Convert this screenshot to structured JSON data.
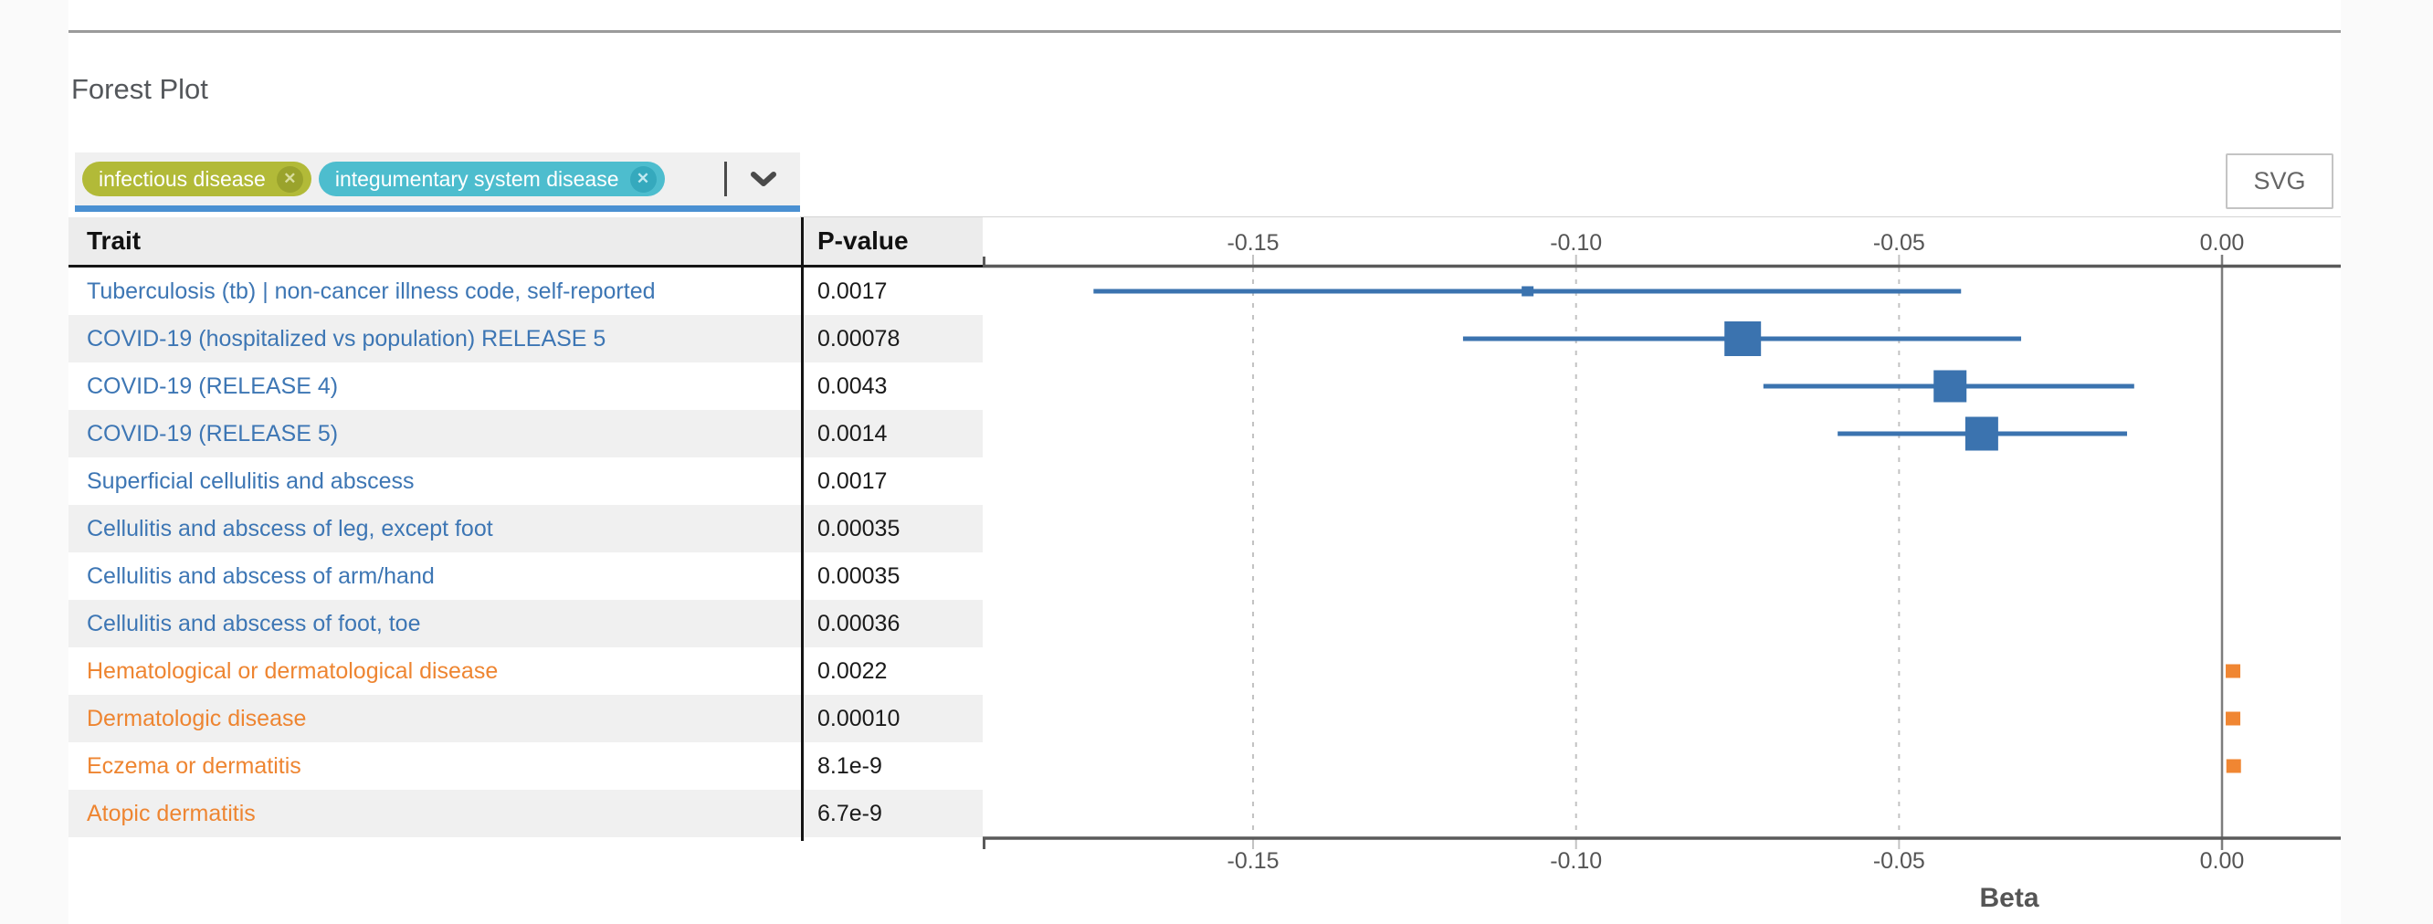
{
  "page": {
    "title": "Forest Plot"
  },
  "icons": {
    "close": "✕"
  },
  "filters": {
    "tags": [
      {
        "label": "infectious disease",
        "color": "#b2ba38"
      },
      {
        "label": "integumentary system disease",
        "color": "#4dbdce"
      }
    ]
  },
  "toolbar": {
    "svg_button_label": "SVG"
  },
  "table": {
    "columns": {
      "trait": "Trait",
      "pvalue": "P-value"
    }
  },
  "chart_data": {
    "type": "forest",
    "xlabel": "Beta",
    "xlim": [
      -0.192,
      0.018
    ],
    "x_ticks": [
      {
        "value": -0.15,
        "label": "-0.15"
      },
      {
        "value": -0.1,
        "label": "-0.10"
      },
      {
        "value": -0.05,
        "label": "-0.05"
      },
      {
        "value": 0.0,
        "label": "0.00"
      }
    ],
    "grid": "dashed-vertical",
    "zero_line": true,
    "colors": {
      "infectious": {
        "text": "#3d76b4",
        "marker": "#3b73af"
      },
      "integumentary": {
        "text": "#ee8531",
        "marker": "#f08632"
      }
    },
    "rows": [
      {
        "trait": "Tuberculosis (tb) | non-cancer illness code, self-reported",
        "pvalue": "0.0017",
        "group": "infectious",
        "beta": -0.1075,
        "ci": [
          -0.1747,
          -0.0404
        ],
        "marker_w": 13,
        "marker_h": 11
      },
      {
        "trait": "COVID-19 (hospitalized vs population) RELEASE 5",
        "pvalue": "0.00078",
        "group": "infectious",
        "beta": -0.0742,
        "ci": [
          -0.1175,
          -0.0311
        ],
        "marker_w": 40,
        "marker_h": 38
      },
      {
        "trait": "COVID-19 (RELEASE 4)",
        "pvalue": "0.0043",
        "group": "infectious",
        "beta": -0.0421,
        "ci": [
          -0.071,
          -0.0136
        ],
        "marker_w": 36,
        "marker_h": 35
      },
      {
        "trait": "COVID-19 (RELEASE 5)",
        "pvalue": "0.0014",
        "group": "infectious",
        "beta": -0.0372,
        "ci": [
          -0.0595,
          -0.0147
        ],
        "marker_w": 36,
        "marker_h": 37
      },
      {
        "trait": "Superficial cellulitis and abscess",
        "pvalue": "0.0017",
        "group": "infectious",
        "beta": null,
        "ci": null,
        "marker_w": 0,
        "marker_h": 0
      },
      {
        "trait": "Cellulitis and abscess of leg, except foot",
        "pvalue": "0.00035",
        "group": "infectious",
        "beta": null,
        "ci": null,
        "marker_w": 0,
        "marker_h": 0
      },
      {
        "trait": "Cellulitis and abscess of arm/hand",
        "pvalue": "0.00035",
        "group": "infectious",
        "beta": null,
        "ci": null,
        "marker_w": 0,
        "marker_h": 0
      },
      {
        "trait": "Cellulitis and abscess of foot, toe",
        "pvalue": "0.00036",
        "group": "infectious",
        "beta": null,
        "ci": null,
        "marker_w": 0,
        "marker_h": 0
      },
      {
        "trait": "Hematological or dermatological disease",
        "pvalue": "0.0022",
        "group": "integumentary",
        "beta": 0.0017,
        "ci": null,
        "marker_w": 16,
        "marker_h": 15
      },
      {
        "trait": "Dermatologic disease",
        "pvalue": "0.00010",
        "group": "integumentary",
        "beta": 0.0017,
        "ci": null,
        "marker_w": 16,
        "marker_h": 15
      },
      {
        "trait": "Eczema or dermatitis",
        "pvalue": "8.1e-9",
        "group": "integumentary",
        "beta": 0.0018,
        "ci": null,
        "marker_w": 16,
        "marker_h": 15
      },
      {
        "trait": "Atopic dermatitis",
        "pvalue": "6.7e-9",
        "group": "integumentary",
        "beta": null,
        "ci": null,
        "marker_w": 0,
        "marker_h": 0
      }
    ]
  }
}
